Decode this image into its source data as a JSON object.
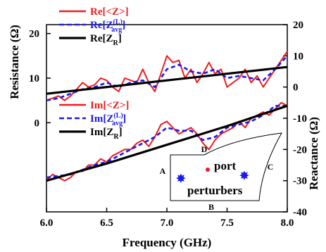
{
  "chart_data": {
    "type": "line",
    "xlabel": "Frequency (GHz)",
    "ylabel_left": "Resistance (Ω)",
    "ylabel_right": "Reactance (Ω)",
    "xlim": [
      6.0,
      8.0
    ],
    "ylim_left": [
      -20,
      22
    ],
    "ylim_right": [
      -40,
      20
    ],
    "x_ticks": [
      "6.0",
      "6.5",
      "7.0",
      "7.5",
      "8.0"
    ],
    "left_ticks": [
      "20",
      "10",
      "0"
    ],
    "right_ticks": [
      "20",
      "10",
      "0",
      "-10",
      "-20",
      "-30",
      "-40"
    ],
    "grid": false,
    "colors": {
      "red": "#ee1c1c",
      "blue": "#1a1aee",
      "black": "#000000"
    },
    "series": [
      {
        "name": "Re[<Z>]",
        "axis": "left",
        "color": "#ee1c1c",
        "style": "solid",
        "x": [
          6.0,
          6.05,
          6.1,
          6.15,
          6.2,
          6.25,
          6.3,
          6.35,
          6.4,
          6.45,
          6.5,
          6.55,
          6.6,
          6.65,
          6.7,
          6.75,
          6.8,
          6.85,
          6.9,
          6.95,
          7.0,
          7.05,
          7.1,
          7.15,
          7.2,
          7.25,
          7.3,
          7.35,
          7.4,
          7.45,
          7.5,
          7.55,
          7.6,
          7.65,
          7.7,
          7.75,
          7.8,
          7.85,
          7.9,
          7.95,
          8.0
        ],
        "y": [
          5,
          5.5,
          6,
          5,
          6,
          7.5,
          9,
          8,
          8.5,
          10,
          9.5,
          8,
          7,
          10,
          9.5,
          9,
          12,
          9,
          7,
          11,
          15,
          13.5,
          14,
          10,
          12,
          9,
          11,
          13.5,
          11,
          12,
          8,
          9,
          10,
          12,
          9,
          10.5,
          8,
          10,
          12,
          14,
          16
        ]
      },
      {
        "name": "Re[Z_avg^(L)]",
        "axis": "left",
        "color": "#1a1aee",
        "style": "dashed",
        "x": [
          6.0,
          6.1,
          6.2,
          6.3,
          6.4,
          6.5,
          6.6,
          6.7,
          6.8,
          6.9,
          7.0,
          7.1,
          7.2,
          7.3,
          7.4,
          7.5,
          7.6,
          7.7,
          7.8,
          7.9,
          8.0
        ],
        "y": [
          5,
          5.5,
          6.5,
          7.5,
          8,
          9,
          8,
          9,
          9.5,
          8,
          12,
          13,
          11.5,
          11,
          12,
          10,
          10.5,
          10,
          9.5,
          12,
          15
        ]
      },
      {
        "name": "Re[Z_R]",
        "axis": "left",
        "color": "#000000",
        "style": "solid",
        "x": [
          6.0,
          8.0
        ],
        "y": [
          6.5,
          12.5
        ]
      },
      {
        "name": "Im[<Z>]",
        "axis": "right",
        "color": "#ee1c1c",
        "style": "solid",
        "x": [
          6.0,
          6.05,
          6.1,
          6.15,
          6.2,
          6.25,
          6.3,
          6.35,
          6.4,
          6.45,
          6.5,
          6.55,
          6.6,
          6.65,
          6.7,
          6.75,
          6.8,
          6.85,
          6.9,
          6.95,
          7.0,
          7.05,
          7.1,
          7.15,
          7.2,
          7.25,
          7.3,
          7.35,
          7.4,
          7.45,
          7.5,
          7.55,
          7.6,
          7.65,
          7.7,
          7.75,
          7.8,
          7.85,
          7.9,
          7.95,
          8.0
        ],
        "y": [
          -30,
          -28,
          -29,
          -30,
          -29,
          -27,
          -27,
          -25,
          -25,
          -23,
          -24,
          -22,
          -21,
          -20,
          -20,
          -18,
          -17,
          -19,
          -16,
          -12,
          -11,
          -13,
          -15,
          -14,
          -13,
          -15,
          -18,
          -20,
          -17,
          -15,
          -14,
          -13,
          -11,
          -13,
          -10,
          -9,
          -8,
          -9,
          -7,
          -5,
          -6
        ]
      },
      {
        "name": "Im[Z_avg^(L)]",
        "axis": "right",
        "color": "#1a1aee",
        "style": "dashed",
        "x": [
          6.0,
          6.1,
          6.2,
          6.3,
          6.4,
          6.5,
          6.6,
          6.7,
          6.8,
          6.9,
          7.0,
          7.1,
          7.2,
          7.3,
          7.4,
          7.5,
          7.6,
          7.7,
          7.8,
          7.9,
          8.0
        ],
        "y": [
          -29,
          -28.5,
          -28,
          -26.5,
          -25,
          -24,
          -22,
          -20,
          -18,
          -16,
          -13,
          -14,
          -14,
          -17,
          -16,
          -13,
          -12,
          -11,
          -9,
          -6,
          -6
        ]
      },
      {
        "name": "Im[Z_R]",
        "axis": "right",
        "color": "#000000",
        "style": "solid",
        "x": [
          6.0,
          6.5,
          7.0,
          7.5,
          8.0
        ],
        "y": [
          -30,
          -24.5,
          -18.5,
          -12.5,
          -6
        ]
      }
    ],
    "legend_top": [
      {
        "base": "Re[<Z>]",
        "sup": "",
        "sub": "",
        "tail": "",
        "color": "#ee1c1c",
        "style": "solid"
      },
      {
        "base": "Re[Z",
        "sup": "(L)",
        "sub": "avg",
        "tail": "]",
        "color": "#1a1aee",
        "style": "dashed"
      },
      {
        "base": "Re[Z",
        "sup": "",
        "sub": "R",
        "tail": "]",
        "color": "#000000",
        "style": "solid"
      }
    ],
    "legend_bottom": [
      {
        "base": "Im[<Z>]",
        "sup": "",
        "sub": "",
        "tail": "",
        "color": "#ee1c1c",
        "style": "solid"
      },
      {
        "base": "Im[Z",
        "sup": "(L)",
        "sub": "avg",
        "tail": "]",
        "color": "#1a1aee",
        "style": "dashed"
      },
      {
        "base": "Im[Z",
        "sup": "",
        "sub": "R",
        "tail": "]",
        "color": "#000000",
        "style": "solid"
      }
    ],
    "inset": {
      "labels": {
        "A": "A",
        "B": "B",
        "C": "C",
        "D": "D"
      },
      "port_label": "port",
      "perturbers_label": "perturbers",
      "port_color": "#ee1c1c",
      "perturber_color": "#1a1aee"
    }
  }
}
